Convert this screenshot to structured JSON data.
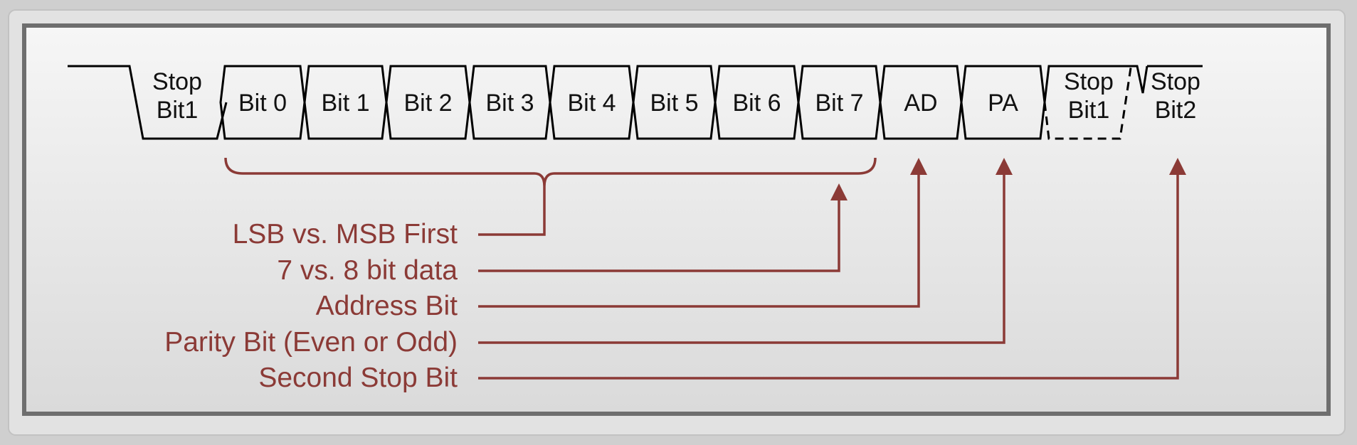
{
  "diagram": {
    "frame": [
      {
        "label": "Stop\nBit1",
        "kind": "idle-stop"
      },
      {
        "label": "Bit 0",
        "kind": "bit"
      },
      {
        "label": "Bit 1",
        "kind": "bit"
      },
      {
        "label": "Bit 2",
        "kind": "bit"
      },
      {
        "label": "Bit 3",
        "kind": "bit"
      },
      {
        "label": "Bit 4",
        "kind": "bit"
      },
      {
        "label": "Bit 5",
        "kind": "bit"
      },
      {
        "label": "Bit 6",
        "kind": "bit"
      },
      {
        "label": "Bit 7",
        "kind": "bit"
      },
      {
        "label": "AD",
        "kind": "bit"
      },
      {
        "label": "PA",
        "kind": "bit"
      },
      {
        "label": "Stop\nBit1",
        "kind": "stop-dashed"
      },
      {
        "label": "Stop\nBit2",
        "kind": "stop-end"
      }
    ],
    "annotations": [
      {
        "text": "LSB vs. MSB First",
        "target": "data-brace"
      },
      {
        "text": "7 vs. 8 bit data",
        "target": "Bit 7"
      },
      {
        "text": "Address Bit",
        "target": "AD"
      },
      {
        "text": "Parity Bit  (Even or Odd)",
        "target": "PA"
      },
      {
        "text": "Second Stop Bit",
        "target": "Stop Bit2"
      }
    ]
  },
  "colors": {
    "annotation": "#8b3a36",
    "line": "#000000",
    "panel_top": "#f4f4f4",
    "panel_bottom": "#dcdcdc",
    "border": "#6e6e6e",
    "outer": "#cfcfcf"
  }
}
